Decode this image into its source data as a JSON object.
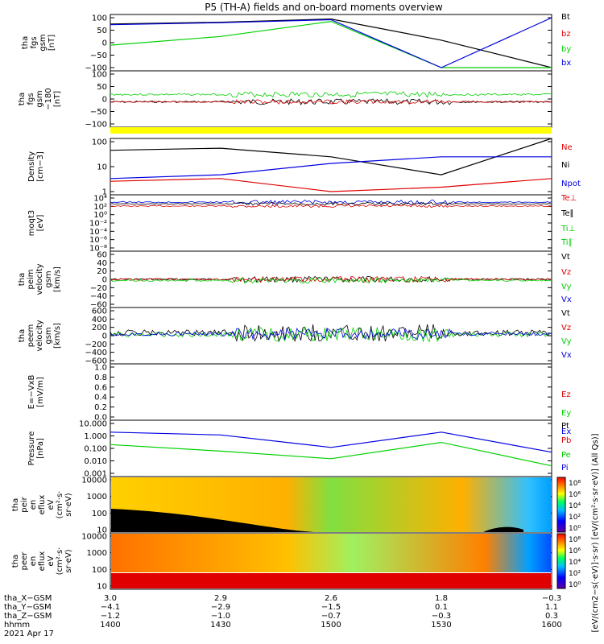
{
  "title": "P5 (TH-A) fields and on-board moments overview",
  "colors": {
    "black": "#000000",
    "red": "#e00000",
    "green": "#00d000",
    "blue": "#0000e0",
    "yellow": "#ffff00"
  },
  "panels": [
    {
      "id": "fgs",
      "ylabel": [
        "tha",
        "fgs",
        "gsm",
        "[nT]"
      ],
      "ticks": [
        "100",
        "50",
        "0",
        "−50",
        "−100"
      ],
      "legend": [
        {
          "text": "Bt",
          "color": "black"
        },
        {
          "text": "bz",
          "color": "red"
        },
        {
          "text": "by",
          "color": "green"
        },
        {
          "text": "bx",
          "color": "blue"
        }
      ]
    },
    {
      "id": "fgs_dsl",
      "ylabel": [
        "tha",
        "fgs",
        "gsm",
        "−180",
        "[nT]"
      ],
      "ticks": [
        "100",
        "50",
        "0",
        "−50",
        "−100"
      ],
      "legend": []
    },
    {
      "id": "density",
      "ylabel": [
        "Density",
        "[cm−3]"
      ],
      "ticks": [
        "100",
        "10",
        "1"
      ],
      "legend": [
        {
          "text": "Ne",
          "color": "red"
        },
        {
          "text": "Ni",
          "color": "black"
        },
        {
          "text": "Npot",
          "color": "blue"
        }
      ]
    },
    {
      "id": "temp",
      "ylabel": [
        "moqt3",
        "[eV]"
      ],
      "ticks": [
        "10⁴",
        "10²",
        "10⁰",
        "10⁻²",
        "10⁻⁴",
        "10⁻⁶",
        "10⁻⁸"
      ],
      "legend": [
        {
          "text": "Te⊥",
          "color": "red"
        },
        {
          "text": "Te∥",
          "color": "black"
        },
        {
          "text": "Ti⊥",
          "color": "green"
        },
        {
          "text": "Ti∥",
          "color": "green"
        }
      ]
    },
    {
      "id": "peim",
      "ylabel": [
        "tha",
        "peim",
        "velocity",
        "gsm",
        "[km/s]"
      ],
      "ticks": [
        "60",
        "40",
        "20",
        "0",
        "−20",
        "−40",
        "−60"
      ],
      "legend": [
        {
          "text": "Vt",
          "color": "black"
        },
        {
          "text": "Vz",
          "color": "red"
        },
        {
          "text": "Vy",
          "color": "green"
        },
        {
          "text": "Vx",
          "color": "blue"
        }
      ]
    },
    {
      "id": "peem",
      "ylabel": [
        "tha",
        "peem",
        "velocity",
        "gsm",
        "[km/s]"
      ],
      "ticks": [
        "600",
        "400",
        "200",
        "0",
        "−200",
        "−400",
        "−600"
      ],
      "legend": [
        {
          "text": "Vt",
          "color": "black"
        },
        {
          "text": "Vz",
          "color": "red"
        },
        {
          "text": "Vy",
          "color": "green"
        },
        {
          "text": "Vx",
          "color": "blue"
        }
      ]
    },
    {
      "id": "efield",
      "ylabel": [
        "E=−VxB",
        "[mV/m]"
      ],
      "ticks": [
        "1.0",
        "0.8",
        "0.6",
        "0.4",
        "0.2",
        "0.0"
      ],
      "legend": [
        {
          "text": "Ez",
          "color": "red"
        },
        {
          "text": "Ey",
          "color": "green"
        },
        {
          "text": "Ex",
          "color": "blue"
        }
      ]
    },
    {
      "id": "pressure",
      "ylabel": [
        "Pressure",
        "[nPa]"
      ],
      "ticks": [
        "10.000",
        "1.000",
        "0.100",
        "0.010",
        "0.001"
      ],
      "legend": [
        {
          "text": "Pt",
          "color": "black"
        },
        {
          "text": "Pb",
          "color": "red"
        },
        {
          "text": "Pe",
          "color": "green"
        },
        {
          "text": "Pi",
          "color": "blue"
        }
      ]
    },
    {
      "id": "peir",
      "ylabel": [
        "tha",
        "peir",
        "en",
        "eflux",
        "eV",
        "(cm²·s·",
        "sr·eV)"
      ],
      "ticks": [
        "10000",
        "1000",
        "100",
        "10"
      ],
      "legend": []
    },
    {
      "id": "peer",
      "ylabel": [
        "tha",
        "peer",
        "en",
        "eflux",
        "eV",
        "(cm²·s·",
        "sr·eV)"
      ],
      "ticks": [
        "10000",
        "1000",
        "100",
        "10"
      ],
      "legend": []
    }
  ],
  "colorbar": {
    "label": "[eV/(cm2−s(·eV)]·s·sr)  [eV/(cm²·s·sr·eV)] (All Qs)]",
    "ticks_top": [
      "10⁸",
      "10⁶",
      "10⁴",
      "10²",
      "10⁰"
    ],
    "ticks_bottom": [
      "10⁸",
      "10⁶",
      "10⁴",
      "10²",
      "10⁰"
    ]
  },
  "xaxis": {
    "rows": [
      {
        "label": "tha_X−GSM",
        "values": [
          "3.0",
          "2.9",
          "2.6",
          "1.8",
          "−0.3"
        ]
      },
      {
        "label": "tha_Y−GSM",
        "values": [
          "−4.1",
          "−2.9",
          "−1.5",
          "0.1",
          "1.1"
        ]
      },
      {
        "label": "tha_Z−GSM",
        "values": [
          "−1.2",
          "−1.0",
          "−0.7",
          "−0.3",
          "0.3"
        ]
      },
      {
        "label": "hhmm",
        "values": [
          "1400",
          "1430",
          "1500",
          "1530",
          "1600"
        ]
      }
    ],
    "date": "2021 Apr 17"
  },
  "chart_data": {
    "type": "line",
    "title": "P5 (TH-A) fields and on-board moments overview",
    "x": [
      1400,
      1430,
      1500,
      1530,
      1600
    ],
    "xlabel": "hhmm",
    "series": [
      {
        "panel": "fgs",
        "name": "Bt",
        "values": [
          75,
          82,
          95,
          10,
          -100
        ]
      },
      {
        "panel": "fgs",
        "name": "by",
        "values": [
          -10,
          25,
          85,
          -100,
          -100
        ]
      },
      {
        "panel": "fgs",
        "name": "bx",
        "values": [
          72,
          80,
          92,
          -100,
          100
        ]
      },
      {
        "panel": "density",
        "name": "Ni",
        "values": [
          40,
          50,
          20,
          3,
          150
        ]
      },
      {
        "panel": "density",
        "name": "Ne",
        "values": [
          1.5,
          2,
          0.5,
          0.8,
          2
        ]
      },
      {
        "panel": "density",
        "name": "Npot",
        "values": [
          2,
          3,
          10,
          20,
          20
        ]
      },
      {
        "panel": "pressure",
        "name": "Pi",
        "values": [
          2,
          1.2,
          0.12,
          2,
          0.05
        ]
      },
      {
        "panel": "pressure",
        "name": "Pe",
        "values": [
          0.2,
          0.06,
          0.015,
          0.3,
          0.004
        ]
      }
    ],
    "xlim": [
      1400,
      1600
    ]
  }
}
